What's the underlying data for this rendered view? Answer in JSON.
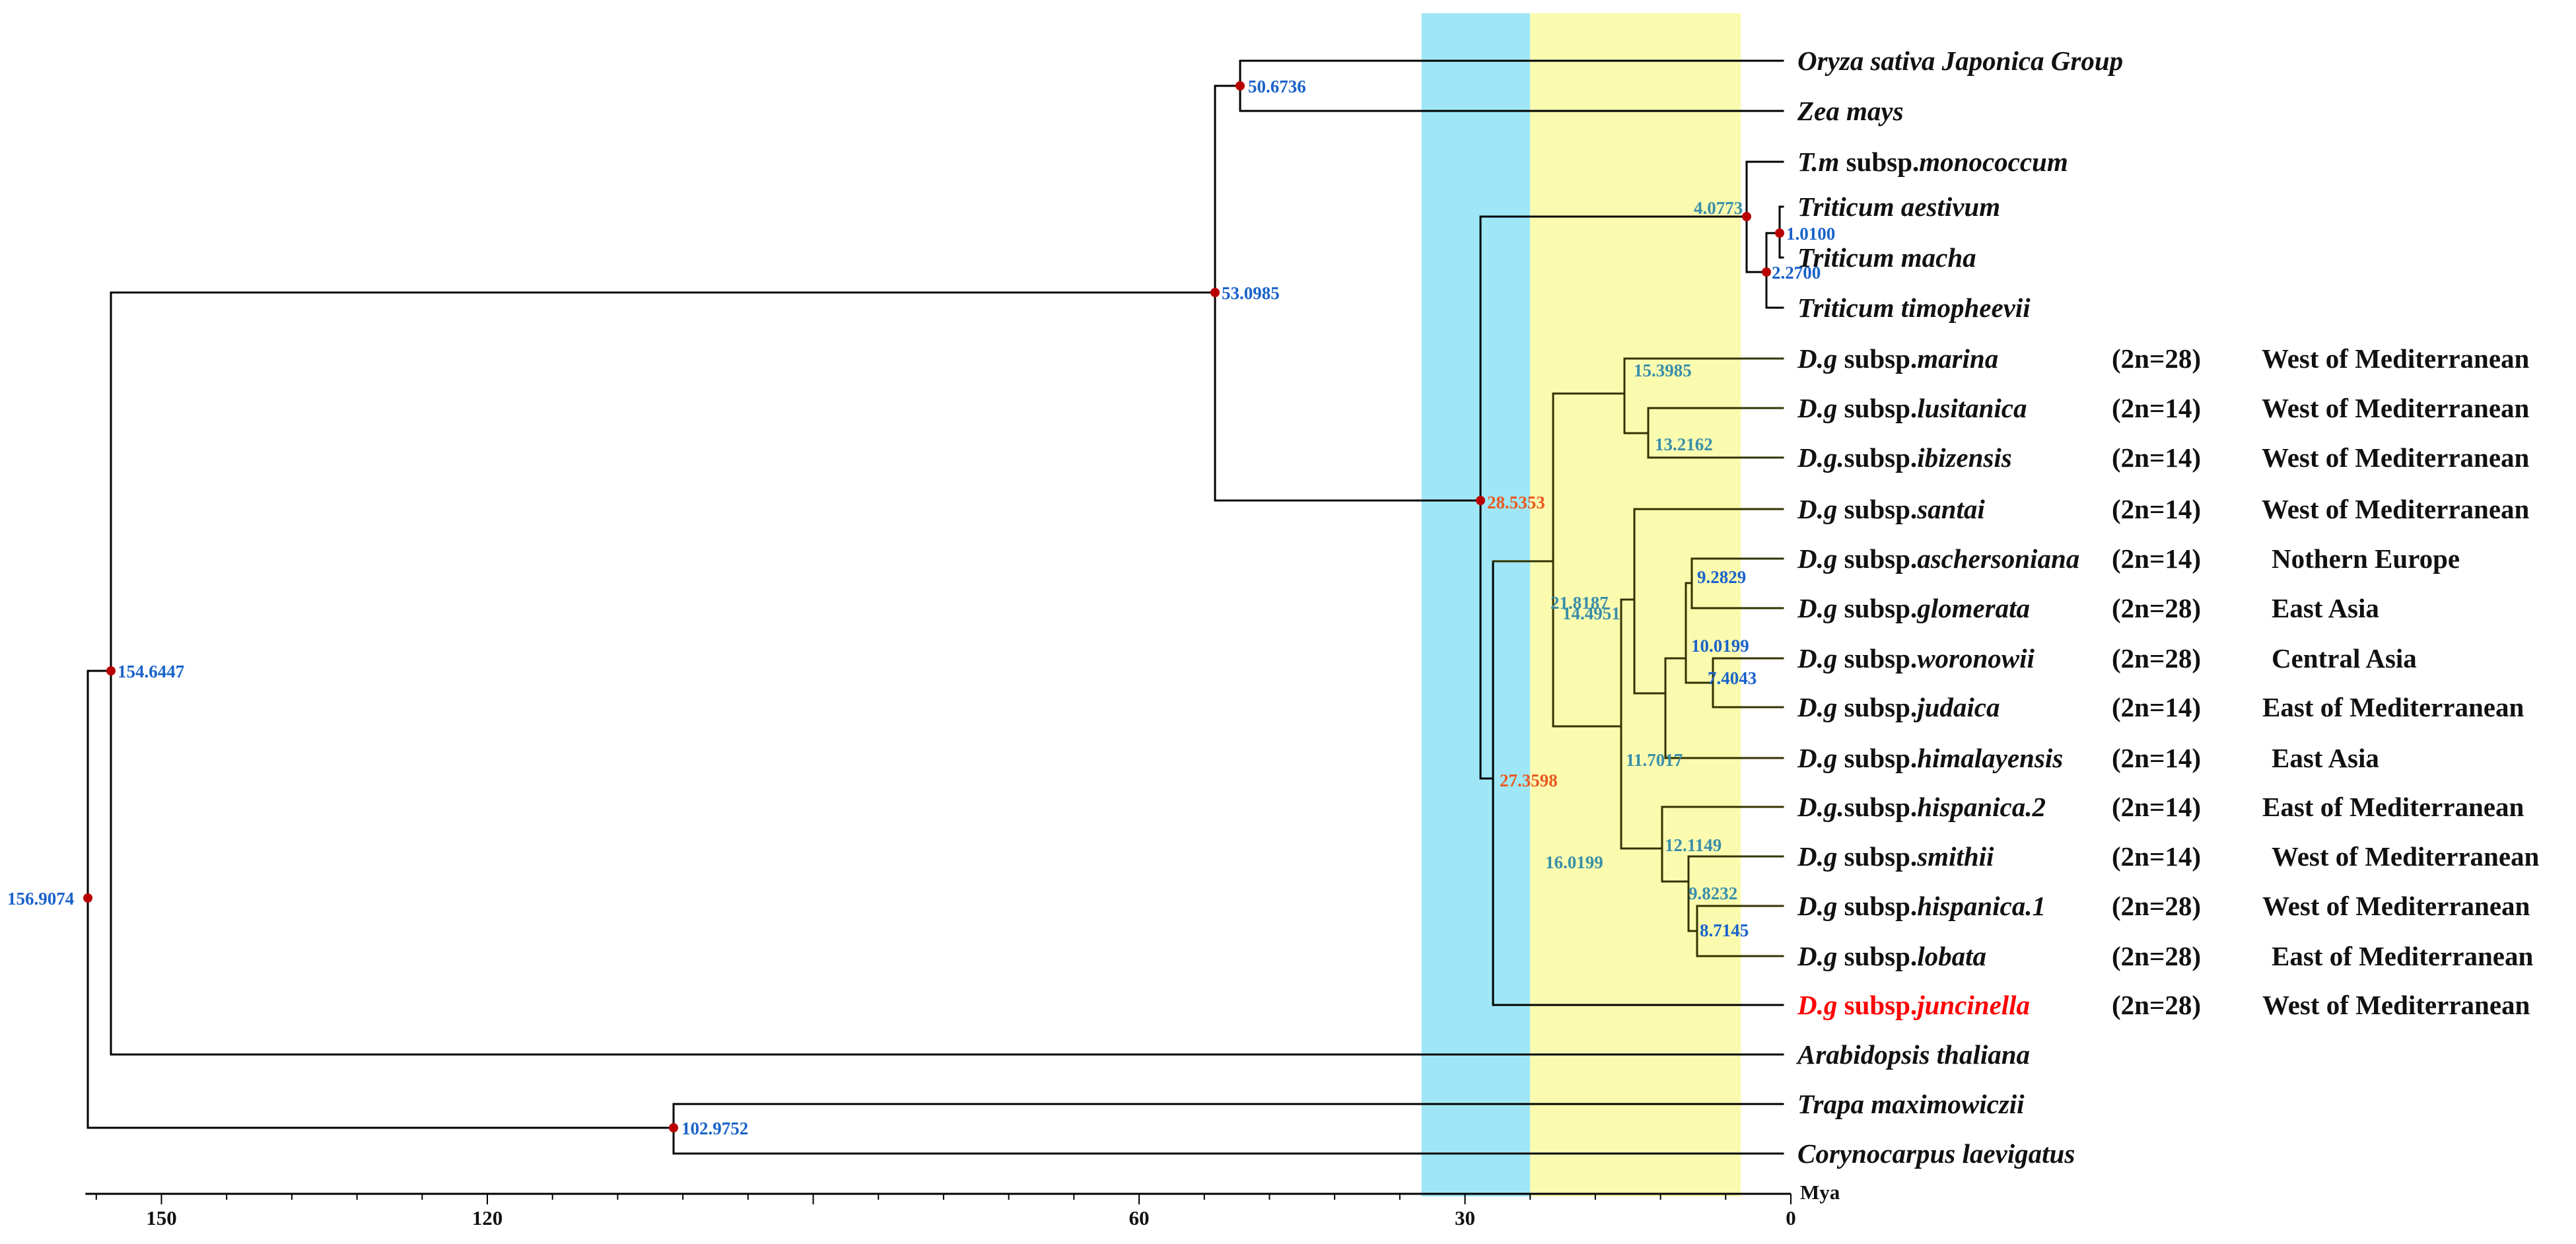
{
  "figure": {
    "axis_unit": "Mya",
    "axis_ticks": [
      "150",
      "120",
      "60",
      "30",
      "0"
    ],
    "axis_range_mya": [
      157,
      0
    ],
    "shaded_intervals_mya": [
      {
        "from": 34,
        "to": 24,
        "color": "#9fe7f7"
      },
      {
        "from": 24,
        "to": 4.6,
        "color": "#fbfbb0"
      }
    ],
    "colors": {
      "branch": "#000000",
      "inner_branch": "#333300",
      "node_dot": "#b80000",
      "highlight": "#ff0000",
      "node_label_blue": "#1a63c9",
      "node_label_teal": "#3a8fa8",
      "node_label_red": "#e85a20"
    }
  },
  "nodes": [
    {
      "id": "root",
      "label": "156.9074",
      "color": "blue",
      "dot": true
    },
    {
      "id": "n154",
      "label": "154.6447",
      "color": "blue",
      "dot": true
    },
    {
      "id": "n102",
      "label": "102.9752",
      "color": "blue",
      "dot": true
    },
    {
      "id": "n53",
      "label": "53.0985",
      "color": "blue",
      "dot": true
    },
    {
      "id": "n50",
      "label": "50.6736",
      "color": "blue",
      "dot": true
    },
    {
      "id": "n28",
      "label": "28.5353",
      "color": "red",
      "dot": true
    },
    {
      "id": "n27",
      "label": "27.3598",
      "color": "red",
      "dot": false
    },
    {
      "id": "n4",
      "label": "4.0773",
      "color": "teal",
      "dot": true
    },
    {
      "id": "n2",
      "label": "2.2700",
      "color": "blue",
      "dot": true
    },
    {
      "id": "n1",
      "label": "1.0100",
      "color": "blue",
      "dot": true
    },
    {
      "id": "n21",
      "label": "21.8187",
      "color": "teal",
      "dot": false
    },
    {
      "id": "n15",
      "label": "15.3985",
      "color": "teal",
      "dot": false
    },
    {
      "id": "n13",
      "label": "13.2162",
      "color": "teal",
      "dot": false
    },
    {
      "id": "n16",
      "label": "16.0199",
      "color": "teal",
      "dot": false
    },
    {
      "id": "n14",
      "label": "14.4951",
      "color": "teal",
      "dot": false
    },
    {
      "id": "n11",
      "label": "11.7017",
      "color": "teal",
      "dot": false
    },
    {
      "id": "n10",
      "label": "10.0199",
      "color": "blue",
      "dot": false
    },
    {
      "id": "n9a",
      "label": "9.2829",
      "color": "blue",
      "dot": false
    },
    {
      "id": "n7",
      "label": "7.4043",
      "color": "blue",
      "dot": false
    },
    {
      "id": "n12",
      "label": "12.1149",
      "color": "teal",
      "dot": false
    },
    {
      "id": "n9b",
      "label": "9.8232",
      "color": "teal",
      "dot": false
    },
    {
      "id": "n8",
      "label": "8.7145",
      "color": "blue",
      "dot": false
    }
  ],
  "taxa": [
    {
      "name": [
        {
          "t": "Oryza sativa Japonica Group",
          "i": true
        }
      ],
      "ploidy": "",
      "region": ""
    },
    {
      "name": [
        {
          "t": "Zea mays",
          "i": true
        }
      ],
      "ploidy": "",
      "region": ""
    },
    {
      "name": [
        {
          "t": "T.m",
          "i": true
        },
        {
          "t": " subsp.",
          "i": false
        },
        {
          "t": "monococcum",
          "i": true
        }
      ],
      "ploidy": "",
      "region": ""
    },
    {
      "name": [
        {
          "t": "Triticum aestivum",
          "i": true
        }
      ],
      "ploidy": "",
      "region": ""
    },
    {
      "name": [
        {
          "t": "Triticum macha",
          "i": true
        }
      ],
      "ploidy": "",
      "region": ""
    },
    {
      "name": [
        {
          "t": "Triticum timopheevii",
          "i": true
        }
      ],
      "ploidy": "",
      "region": ""
    },
    {
      "name": [
        {
          "t": "D.g",
          "i": true
        },
        {
          "t": " subsp.",
          "i": false
        },
        {
          "t": "marina",
          "i": true
        }
      ],
      "ploidy": "(2n=28)",
      "region": "West of Mediterranean"
    },
    {
      "name": [
        {
          "t": "D.g",
          "i": true
        },
        {
          "t": " subsp.",
          "i": false
        },
        {
          "t": "lusitanica",
          "i": true
        }
      ],
      "ploidy": "(2n=14)",
      "region": "West of Mediterranean"
    },
    {
      "name": [
        {
          "t": "D.g.",
          "i": true
        },
        {
          "t": "subsp.",
          "i": false
        },
        {
          "t": "ibizensis",
          "i": true
        }
      ],
      "ploidy": "(2n=14)",
      "region": "West of Mediterranean"
    },
    {
      "name": [
        {
          "t": "D.g",
          "i": true
        },
        {
          "t": " subsp.",
          "i": false
        },
        {
          "t": "santai",
          "i": true
        }
      ],
      "ploidy": "(2n=14)",
      "region": "West of Mediterranean"
    },
    {
      "name": [
        {
          "t": "D.g",
          "i": true
        },
        {
          "t": " subsp.",
          "i": false
        },
        {
          "t": "aschersoniana",
          "i": true
        }
      ],
      "ploidy": "(2n=14)",
      "region": "Nothern Europe"
    },
    {
      "name": [
        {
          "t": "D.g",
          "i": true
        },
        {
          "t": " subsp.",
          "i": false
        },
        {
          "t": "glomerata",
          "i": true
        }
      ],
      "ploidy": "(2n=28)",
      "region": "East Asia"
    },
    {
      "name": [
        {
          "t": "D.g",
          "i": true
        },
        {
          "t": " subsp.",
          "i": false
        },
        {
          "t": "woronowii",
          "i": true
        }
      ],
      "ploidy": "(2n=28)",
      "region": "Central Asia"
    },
    {
      "name": [
        {
          "t": "D.g",
          "i": true
        },
        {
          "t": " subsp.",
          "i": false
        },
        {
          "t": "judaica",
          "i": true
        }
      ],
      "ploidy": "(2n=14)",
      "region": "East of Mediterranean"
    },
    {
      "name": [
        {
          "t": "D.g",
          "i": true
        },
        {
          "t": " subsp.",
          "i": false
        },
        {
          "t": "himalayensis",
          "i": true
        }
      ],
      "ploidy": "(2n=14)",
      "region": "East Asia"
    },
    {
      "name": [
        {
          "t": "D.g.",
          "i": true
        },
        {
          "t": "subsp.",
          "i": false
        },
        {
          "t": "hispanica.2",
          "i": true
        }
      ],
      "ploidy": "(2n=14)",
      "region": "East of Mediterranean"
    },
    {
      "name": [
        {
          "t": "D.g",
          "i": true
        },
        {
          "t": " subsp.",
          "i": false
        },
        {
          "t": "smithii",
          "i": true
        }
      ],
      "ploidy": "(2n=14)",
      "region": "West of Mediterranean"
    },
    {
      "name": [
        {
          "t": "D.g",
          "i": true
        },
        {
          "t": " subsp.",
          "i": false
        },
        {
          "t": "hispanica.1",
          "i": true
        }
      ],
      "ploidy": "(2n=28)",
      "region": "West of Mediterranean"
    },
    {
      "name": [
        {
          "t": "D.g",
          "i": true
        },
        {
          "t": " subsp.",
          "i": false
        },
        {
          "t": "lobata",
          "i": true
        }
      ],
      "ploidy": "(2n=28)",
      "region": "East of Mediterranean"
    },
    {
      "name": [
        {
          "t": "D.g",
          "i": true
        },
        {
          "t": " subsp.",
          "i": false
        },
        {
          "t": "juncinella",
          "i": true
        }
      ],
      "ploidy": "(2n=28)",
      "region": "West of Mediterranean",
      "highlight": true
    },
    {
      "name": [
        {
          "t": "Arabidopsis thaliana",
          "i": true
        }
      ],
      "ploidy": "",
      "region": ""
    },
    {
      "name": [
        {
          "t": "Trapa maximowiczii",
          "i": true
        }
      ],
      "ploidy": "",
      "region": ""
    },
    {
      "name": [
        {
          "t": "Corynocarpus laevigatus",
          "i": true
        }
      ],
      "ploidy": "",
      "region": ""
    }
  ]
}
